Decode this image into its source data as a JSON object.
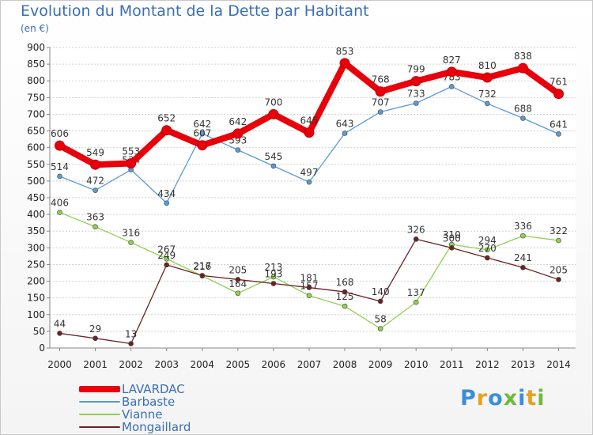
{
  "title": "Evolution du Montant de la Dette par Habitant",
  "unit": "(en €)",
  "brand": {
    "text": "Proxiti",
    "letter_colors": [
      "#3a8fd8",
      "#e8a020",
      "#3a8fd8",
      "#6dbb3a",
      "#3a8fd8",
      "#e8a020",
      "#6dbb3a"
    ]
  },
  "chart_data": {
    "type": "line",
    "x": [
      "2000",
      "2001",
      "2002",
      "2003",
      "2004",
      "2005",
      "2006",
      "2007",
      "2008",
      "2009",
      "2010",
      "2011",
      "2012",
      "2013",
      "2014"
    ],
    "ylim": [
      0,
      900
    ],
    "yticks": [
      0,
      50,
      100,
      150,
      200,
      250,
      300,
      350,
      400,
      450,
      500,
      550,
      600,
      650,
      700,
      750,
      800,
      850,
      900
    ],
    "grid": "horizontal",
    "legend_position": "bottom-left",
    "series": [
      {
        "name": "LAVARDAC",
        "color": "#e8000b",
        "values": [
          606,
          549,
          553,
          652,
          607,
          642,
          700,
          645,
          853,
          768,
          799,
          827,
          810,
          838,
          761
        ]
      },
      {
        "name": "Barbaste",
        "color": "#5b9bd5",
        "values": [
          514,
          472,
          534,
          434,
          642,
          593,
          545,
          497,
          643,
          707,
          733,
          783,
          732,
          688,
          641
        ]
      },
      {
        "name": "Vianne",
        "color": "#8fd14f",
        "values": [
          406,
          363,
          316,
          267,
          216,
          164,
          213,
          157,
          125,
          58,
          137,
          310,
          294,
          336,
          322
        ]
      },
      {
        "name": "Mongaillard",
        "color": "#6b2222",
        "values": [
          44,
          29,
          13,
          249,
          217,
          205,
          193,
          181,
          168,
          140,
          326,
          300,
          270,
          241,
          205
        ]
      }
    ]
  }
}
